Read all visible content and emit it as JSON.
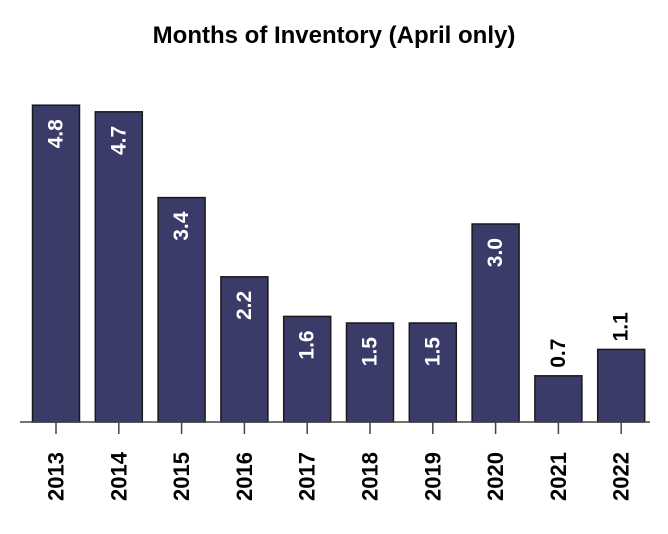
{
  "chart_data": {
    "type": "bar",
    "title": "Months of Inventory (April only)",
    "xlabel": "",
    "ylabel": "",
    "categories": [
      "2013",
      "2014",
      "2015",
      "2016",
      "2017",
      "2018",
      "2019",
      "2020",
      "2021",
      "2022"
    ],
    "values": [
      4.8,
      4.7,
      3.4,
      2.2,
      1.6,
      1.5,
      1.5,
      3.0,
      0.7,
      1.1
    ],
    "labels": [
      "4.8",
      "4.7",
      "3.4",
      "2.2",
      "1.6",
      "1.5",
      "1.5",
      "3.0",
      "0.7",
      "1.1"
    ],
    "label_inside": [
      true,
      true,
      true,
      true,
      true,
      true,
      true,
      true,
      false,
      false
    ],
    "ylim": [
      0,
      5
    ],
    "grid": false,
    "legend": "none",
    "bar_color": "#3b3b69",
    "inside_label_color": "#ffffff",
    "outside_label_color": "#000000"
  }
}
